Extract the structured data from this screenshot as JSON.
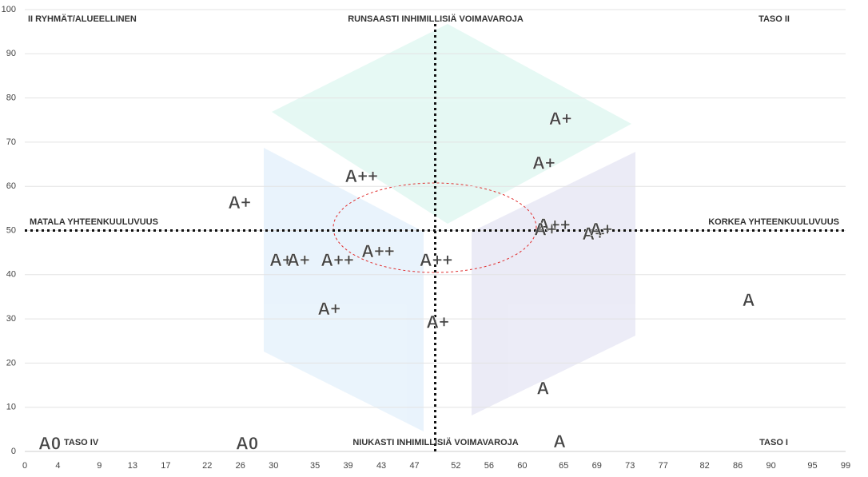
{
  "chart_data": {
    "type": "scatter",
    "xlim": [
      0,
      99
    ],
    "ylim": [
      0,
      100
    ],
    "xticks": [
      0,
      4,
      9,
      13,
      17,
      22,
      26,
      30,
      35,
      39,
      43,
      47,
      52,
      56,
      60,
      65,
      69,
      73,
      77,
      82,
      86,
      90,
      95,
      99
    ],
    "yticks": [
      0,
      10,
      20,
      30,
      40,
      50,
      60,
      70,
      80,
      90,
      100
    ],
    "grid": true,
    "reference_lines": {
      "x": 49.5,
      "y": 50
    },
    "annotations": [
      "II RYHMÄT/ALUEELLINEN",
      "RUNSAASTI INHIMILLISIÄ VOIMAVAROJA",
      "TASO II",
      "MATALA YHTEENKUULUVUUS",
      "KORKEA YHTEENKUULUVUUS",
      "TASO IV",
      "NIUKASTI INHIMILLISIÄ VOIMAVAROJA",
      "TASO I"
    ],
    "series": [
      {
        "name": "A++",
        "color": "#1b8a3a",
        "x": [
          40.6,
          63.8,
          42.6,
          37.7,
          49.6
        ],
        "y": [
          62,
          51,
          45,
          43,
          43
        ]
      },
      {
        "name": "A+",
        "color": "#2dbf4a",
        "x": [
          25.9,
          64.6,
          62.6,
          62.8,
          68.6,
          69.5,
          30.9,
          33,
          36.7,
          49.8
        ],
        "y": [
          56,
          75,
          65,
          50,
          49,
          50,
          43,
          43,
          32,
          29
        ]
      },
      {
        "name": "A",
        "color": "#e0b020",
        "x": [
          87.3,
          62.5,
          64.5
        ],
        "y": [
          34,
          14,
          2
        ]
      },
      {
        "name": "A0",
        "color": "#d9262b",
        "x": [
          3,
          26.8
        ],
        "y": [
          1.5,
          1.5
        ]
      }
    ]
  }
}
